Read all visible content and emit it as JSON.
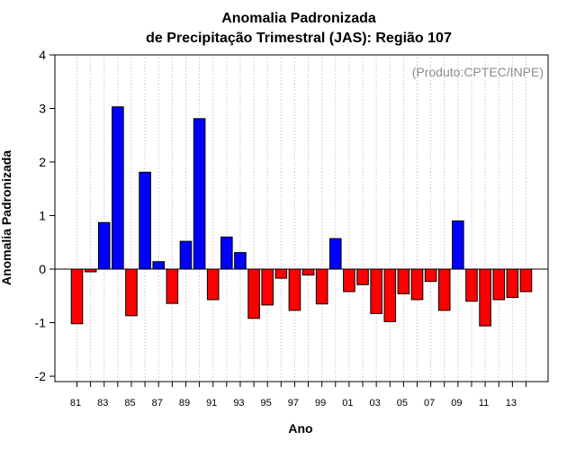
{
  "chart_data": {
    "type": "bar",
    "title_line1": "Anomalia Padronizada",
    "title_line2": "de Precipitação Trimestral (JAS): Região 107",
    "xlabel": "Ano",
    "ylabel": "Anomalia Padronizada",
    "credit": "(Produto:CPTEC/INPE)",
    "ylim": [
      -2.1,
      4.0
    ],
    "yticks": [
      -2,
      -1,
      0,
      1,
      2,
      3,
      4
    ],
    "grid": "vertical-dotted",
    "positive_color": "#0000ff",
    "negative_color": "#ff0000",
    "categories": [
      "81",
      "82",
      "83",
      "84",
      "85",
      "86",
      "87",
      "88",
      "89",
      "90",
      "91",
      "92",
      "93",
      "94",
      "95",
      "96",
      "97",
      "98",
      "99",
      "00",
      "01",
      "02",
      "03",
      "04",
      "05",
      "06",
      "07",
      "08",
      "09",
      "10",
      "11",
      "12",
      "13",
      "14"
    ],
    "tick_labels": [
      "81",
      "",
      "83",
      "",
      "85",
      "",
      "87",
      "",
      "89",
      "",
      "91",
      "",
      "93",
      "",
      "95",
      "",
      "97",
      "",
      "99",
      "",
      "01",
      "",
      "03",
      "",
      "05",
      "",
      "07",
      "",
      "09",
      "",
      "11",
      "",
      "13",
      ""
    ],
    "values": [
      -1.02,
      -0.05,
      0.87,
      3.03,
      -0.87,
      1.81,
      0.14,
      -0.64,
      0.52,
      2.81,
      -0.57,
      0.6,
      0.31,
      -0.92,
      -0.67,
      -0.17,
      -0.77,
      -0.11,
      -0.65,
      0.57,
      -0.42,
      -0.29,
      -0.83,
      -0.98,
      -0.46,
      -0.57,
      -0.23,
      -0.77,
      0.9,
      -0.6,
      -1.06,
      -0.57,
      -0.53,
      -0.42
    ]
  }
}
